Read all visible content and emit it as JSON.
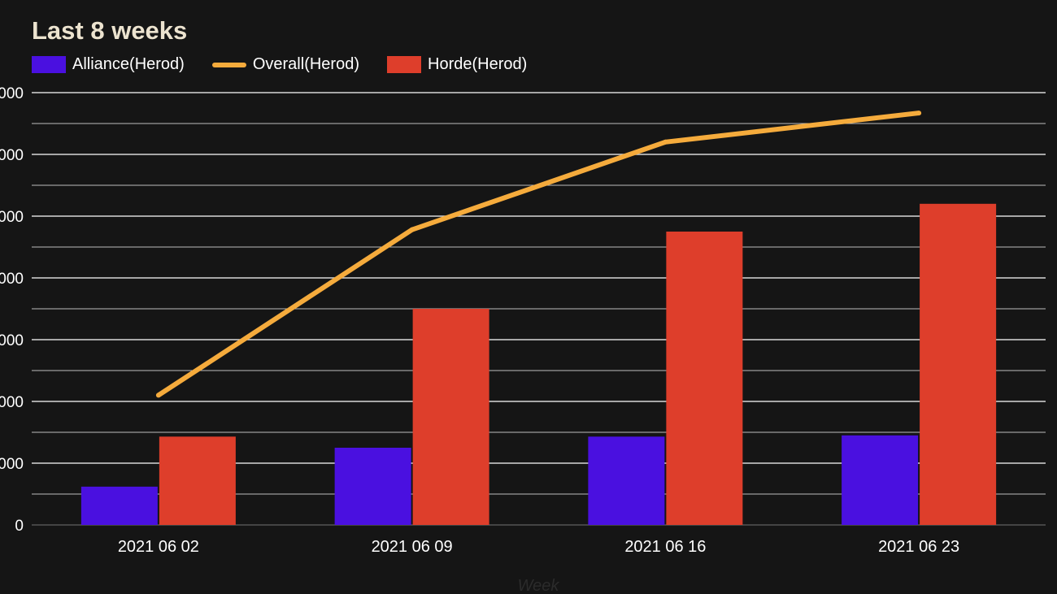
{
  "chart_data": {
    "type": "bar",
    "title": "Last 8 weeks",
    "xlabel": "Week",
    "ylabel": "",
    "categories": [
      "2021 06 02",
      "2021 06 09",
      "2021 06 16",
      "2021 06 23"
    ],
    "y_tick_labels": [
      "0",
      "000",
      "000",
      "000",
      "000",
      "000",
      "000",
      "000"
    ],
    "ylim": [
      0,
      7000
    ],
    "grid": true,
    "legend_position": "top-left",
    "series": [
      {
        "name": "Alliance(Herod)",
        "kind": "bar",
        "color": "#4a10e0",
        "values": [
          620,
          1250,
          1430,
          1450
        ]
      },
      {
        "name": "Overall(Herod)",
        "kind": "line",
        "color": "#f5ab3c",
        "values": [
          2100,
          4780,
          6200,
          6670
        ]
      },
      {
        "name": "Horde(Herod)",
        "kind": "bar",
        "color": "#de3e2b",
        "values": [
          1430,
          3500,
          4750,
          5200
        ]
      }
    ]
  }
}
